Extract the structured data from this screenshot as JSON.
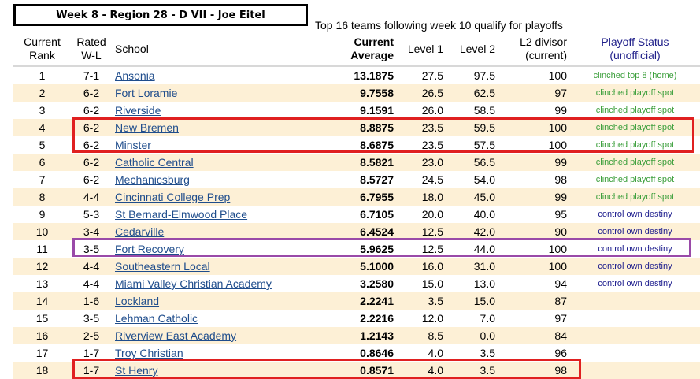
{
  "header": {
    "title": "Week 8 - Region 28 - D VII - Joe Eitel",
    "note": "Top 16 teams following week 10 qualify for playoffs"
  },
  "table": {
    "columns": {
      "rank_line1": "Current",
      "rank_line2": "Rank",
      "wl_line1": "Rated",
      "wl_line2": "W-L",
      "school": "School",
      "avg_line1": "Current",
      "avg_line2": "Average",
      "level1": "Level 1",
      "level2": "Level 2",
      "divisor_line1": "L2 divisor",
      "divisor_line2": "(current)",
      "status_line1": "Playoff Status",
      "status_line2": "(unofficial)"
    },
    "rows": [
      {
        "rank": "1",
        "wl": "7-1",
        "school": "Ansonia",
        "avg": "13.1875",
        "l1": "27.5",
        "l2": "97.5",
        "div": "100",
        "status": "clinched top 8 (home)",
        "status_color": "green"
      },
      {
        "rank": "2",
        "wl": "6-2",
        "school": "Fort Loramie",
        "avg": "9.7558",
        "l1": "26.5",
        "l2": "62.5",
        "div": "97",
        "status": "clinched playoff spot",
        "status_color": "green"
      },
      {
        "rank": "3",
        "wl": "6-2",
        "school": "Riverside",
        "avg": "9.1591",
        "l1": "26.0",
        "l2": "58.5",
        "div": "99",
        "status": "clinched playoff spot",
        "status_color": "green"
      },
      {
        "rank": "4",
        "wl": "6-2",
        "school": "New Bremen",
        "avg": "8.8875",
        "l1": "23.5",
        "l2": "59.5",
        "div": "100",
        "status": "clinched playoff spot",
        "status_color": "green"
      },
      {
        "rank": "5",
        "wl": "6-2",
        "school": "Minster",
        "avg": "8.6875",
        "l1": "23.5",
        "l2": "57.5",
        "div": "100",
        "status": "clinched playoff spot",
        "status_color": "green"
      },
      {
        "rank": "6",
        "wl": "6-2",
        "school": "Catholic Central",
        "avg": "8.5821",
        "l1": "23.0",
        "l2": "56.5",
        "div": "99",
        "status": "clinched playoff spot",
        "status_color": "green"
      },
      {
        "rank": "7",
        "wl": "6-2",
        "school": "Mechanicsburg",
        "avg": "8.5727",
        "l1": "24.5",
        "l2": "54.0",
        "div": "98",
        "status": "clinched playoff spot",
        "status_color": "green"
      },
      {
        "rank": "8",
        "wl": "4-4",
        "school": "Cincinnati College Prep",
        "avg": "6.7955",
        "l1": "18.0",
        "l2": "45.0",
        "div": "99",
        "status": "clinched playoff spot",
        "status_color": "green"
      },
      {
        "rank": "9",
        "wl": "5-3",
        "school": "St Bernard-Elmwood Place",
        "avg": "6.7105",
        "l1": "20.0",
        "l2": "40.0",
        "div": "95",
        "status": "control own destiny",
        "status_color": "navy"
      },
      {
        "rank": "10",
        "wl": "3-4",
        "school": "Cedarville",
        "avg": "6.4524",
        "l1": "12.5",
        "l2": "42.0",
        "div": "90",
        "status": "control own destiny",
        "status_color": "navy"
      },
      {
        "rank": "11",
        "wl": "3-5",
        "school": "Fort Recovery",
        "avg": "5.9625",
        "l1": "12.5",
        "l2": "44.0",
        "div": "100",
        "status": "control own destiny",
        "status_color": "navy"
      },
      {
        "rank": "12",
        "wl": "4-4",
        "school": "Southeastern Local",
        "avg": "5.1000",
        "l1": "16.0",
        "l2": "31.0",
        "div": "100",
        "status": "control own destiny",
        "status_color": "navy"
      },
      {
        "rank": "13",
        "wl": "4-4",
        "school": "Miami Valley Christian Academy",
        "avg": "3.2580",
        "l1": "15.0",
        "l2": "13.0",
        "div": "94",
        "status": "control own destiny",
        "status_color": "navy"
      },
      {
        "rank": "14",
        "wl": "1-6",
        "school": "Lockland",
        "avg": "2.2241",
        "l1": "3.5",
        "l2": "15.0",
        "div": "87",
        "status": "",
        "status_color": "navy"
      },
      {
        "rank": "15",
        "wl": "3-5",
        "school": "Lehman Catholic",
        "avg": "2.2216",
        "l1": "12.0",
        "l2": "7.0",
        "div": "97",
        "status": "",
        "status_color": "navy"
      },
      {
        "rank": "16",
        "wl": "2-5",
        "school": "Riverview East Academy",
        "avg": "1.2143",
        "l1": "8.5",
        "l2": "0.0",
        "div": "84",
        "status": "",
        "status_color": "navy"
      },
      {
        "rank": "17",
        "wl": "1-7",
        "school": "Troy Christian",
        "avg": "0.8646",
        "l1": "4.0",
        "l2": "3.5",
        "div": "96",
        "status": "",
        "status_color": "navy"
      },
      {
        "rank": "18",
        "wl": "1-7",
        "school": "St Henry",
        "avg": "0.8571",
        "l1": "4.0",
        "l2": "3.5",
        "div": "98",
        "status": "",
        "status_color": "navy"
      }
    ]
  },
  "highlights": {
    "minster_bremen_box_color": "#e02020",
    "fort_recovery_box_color": "#9a4aa8",
    "st_henry_box_color": "#e02020"
  },
  "colors": {
    "status_green": "#3a9e3a",
    "status_navy": "#1a1a8c",
    "link": "#1f4d8c",
    "row_stripe": "#fdf0d6"
  }
}
